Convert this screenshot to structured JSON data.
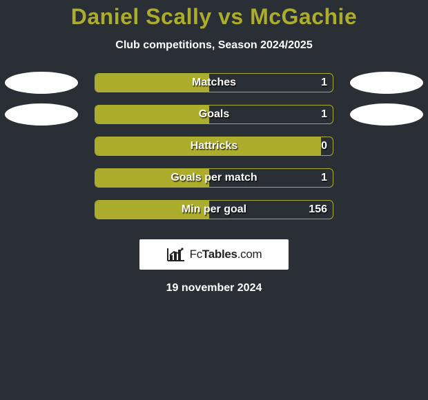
{
  "background_color": "#2a2e35",
  "title": {
    "text": "Daniel Scally vs McGachie",
    "color": "#acac2d",
    "fontsize": 32
  },
  "subtitle": {
    "text": "Club competitions, Season 2024/2025",
    "color": "#ffffff",
    "fontsize": 16
  },
  "players": {
    "left_avatar_color": "#fefefe",
    "right_avatar_color": "#fefefe"
  },
  "bar_style": {
    "border_color": "#acac2d",
    "fill_color": "#acac2d",
    "label_color": "#ffffff",
    "value_color": "#ffffff",
    "fontsize": 16
  },
  "rows": [
    {
      "label": "Matches",
      "left": "",
      "right": "1",
      "fill_pct": 48,
      "show_avatars": true
    },
    {
      "label": "Goals",
      "left": "",
      "right": "1",
      "fill_pct": 48,
      "show_avatars": true
    },
    {
      "label": "Hattricks",
      "left": "",
      "right": "0",
      "fill_pct": 95,
      "show_avatars": false
    },
    {
      "label": "Goals per match",
      "left": "",
      "right": "1",
      "fill_pct": 48,
      "show_avatars": false
    },
    {
      "label": "Min per goal",
      "left": "",
      "right": "156",
      "fill_pct": 48,
      "show_avatars": false
    }
  ],
  "footer": {
    "brand_prefix": "Fc",
    "brand_bold": "Tables",
    "brand_suffix": ".com",
    "date": "19 november 2024"
  }
}
